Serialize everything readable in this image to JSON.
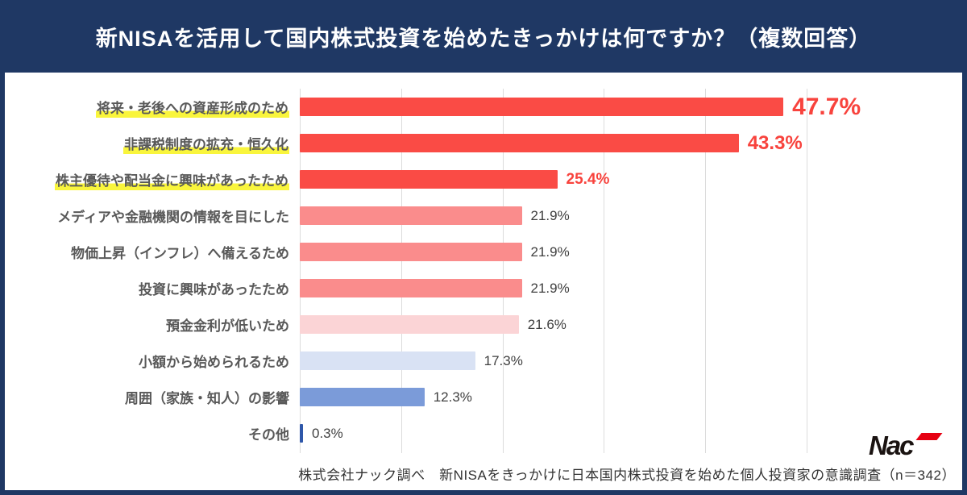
{
  "header": {
    "title": "新NISAを活用して国内株式投資を始めたきっかけは何ですか？（複数回答）",
    "bg_color": "#1F3864",
    "text_color": "#FFFFFF"
  },
  "chart_data": {
    "type": "bar",
    "orientation": "horizontal",
    "title": "新NISAを活用して国内株式投資を始めたきっかけは何ですか？（複数回答）",
    "xlabel": "",
    "ylabel": "",
    "xlim": [
      0,
      50
    ],
    "gridlines_percent": [
      0,
      10,
      20,
      30,
      40,
      50
    ],
    "grid": "vertical-light-gray",
    "legend": "none",
    "categories": [
      "将来・老後への資産形成のため",
      "非課税制度の拡充・恒久化",
      "株主優待や配当金に興味があったため",
      "メディアや金融機関の情報を目にした",
      "物価上昇（インフレ）へ備えるため",
      "投資に興味があったため",
      "預金金利が低いため",
      "小額から始められるため",
      "周囲（家族・知人）の影響",
      "その他"
    ],
    "values": [
      47.7,
      43.3,
      25.4,
      21.9,
      21.9,
      21.9,
      21.6,
      17.3,
      12.3,
      0.3
    ],
    "rows": [
      {
        "label": "将来・老後への資産形成のため",
        "value": 47.7,
        "display": "47.7%",
        "bar_color": "#FA4B45",
        "emphasis": "xl",
        "highlight": true
      },
      {
        "label": "非課税制度の拡充・恒久化",
        "value": 43.3,
        "display": "43.3%",
        "bar_color": "#FA4B45",
        "emphasis": "lg",
        "highlight": true
      },
      {
        "label": "株主優待や配当金に興味があったため",
        "value": 25.4,
        "display": "25.4%",
        "bar_color": "#FA4B45",
        "emphasis": "md",
        "highlight": true
      },
      {
        "label": "メディアや金融機関の情報を目にした",
        "value": 21.9,
        "display": "21.9%",
        "bar_color": "#FA8C8C",
        "emphasis": "normal",
        "highlight": false
      },
      {
        "label": "物価上昇（インフレ）へ備えるため",
        "value": 21.9,
        "display": "21.9%",
        "bar_color": "#FA8C8C",
        "emphasis": "normal",
        "highlight": false
      },
      {
        "label": "投資に興味があったため",
        "value": 21.9,
        "display": "21.9%",
        "bar_color": "#FA8C8C",
        "emphasis": "normal",
        "highlight": false
      },
      {
        "label": "預金金利が低いため",
        "value": 21.6,
        "display": "21.6%",
        "bar_color": "#FBD4D6",
        "emphasis": "normal",
        "highlight": false
      },
      {
        "label": "小額から始められるため",
        "value": 17.3,
        "display": "17.3%",
        "bar_color": "#D9E2F4",
        "emphasis": "normal",
        "highlight": false
      },
      {
        "label": "周囲（家族・知人）の影響",
        "value": 12.3,
        "display": "12.3%",
        "bar_color": "#7B9BD9",
        "emphasis": "normal",
        "highlight": false
      },
      {
        "label": "その他",
        "value": 0.3,
        "display": "0.3%",
        "bar_color": "#2E57A9",
        "emphasis": "normal",
        "highlight": false
      }
    ],
    "highlight_marker_color": "#F9F53C",
    "value_label_red": "#F8433D",
    "value_label_gray": "#404040",
    "category_label_color": "#595959"
  },
  "footer": {
    "source_text": "株式会社ナック調べ　新NISAをきっかけに日本国内株式投資を始めた個人投資家の意識調査（n＝342）",
    "logo_text": "Nac",
    "logo_accent_color": "#E60012"
  }
}
